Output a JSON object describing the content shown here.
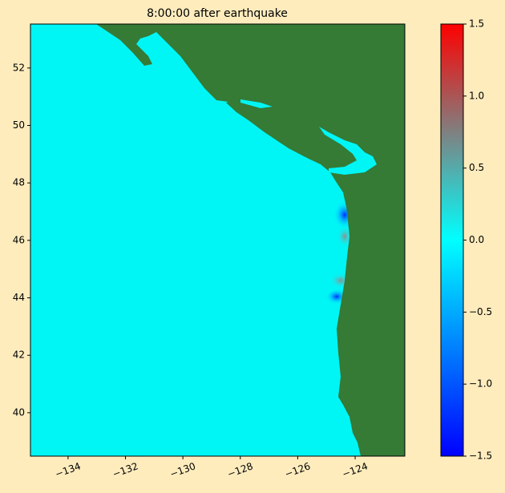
{
  "chart_data": {
    "type": "map",
    "title": "8:00:00 after earthquake",
    "xlim": [
      -135.31,
      -122.27
    ],
    "ylim": [
      38.49,
      53.53
    ],
    "xticks": [
      {
        "value": -134,
        "label": "−134"
      },
      {
        "value": -132,
        "label": "−132"
      },
      {
        "value": -130,
        "label": "−130"
      },
      {
        "value": -128,
        "label": "−128"
      },
      {
        "value": -126,
        "label": "−126"
      },
      {
        "value": -124,
        "label": "−124"
      }
    ],
    "yticks": [
      40,
      42,
      44,
      46,
      48,
      50,
      52
    ],
    "colorbar": {
      "ylim": [
        -1.5,
        1.5
      ],
      "yticks": [
        {
          "value": -1.5,
          "label": "−1.5"
        },
        {
          "value": -1.0,
          "label": "−1.0"
        },
        {
          "value": -0.5,
          "label": "−0.5"
        },
        {
          "value": 0,
          "label": "0.0"
        },
        0.5,
        {
          "value": 1.0,
          "label": "1.0"
        },
        1.5
      ]
    }
  }
}
